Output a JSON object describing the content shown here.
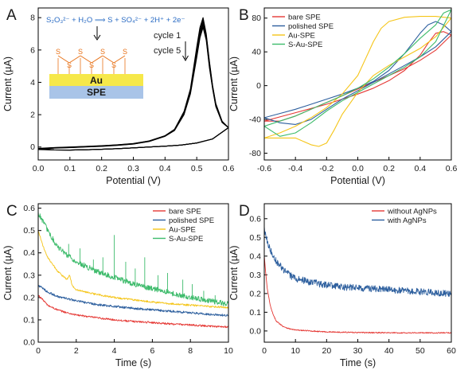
{
  "colors": {
    "red": "#e53935",
    "blue": "#2d5f9e",
    "yellow": "#f5c518",
    "green": "#3dbb6b",
    "navy_equation": "#2b6cc4",
    "gold_layer": "#f6e84a",
    "spe_layer": "#a9c4e8",
    "sulfur": "#e8731a",
    "black": "#000000"
  },
  "chart_data": [
    {
      "panel": "A",
      "type": "line",
      "xlabel": "Potential (V)",
      "ylabel": "Current (µA)",
      "xlim": [
        0.0,
        0.6
      ],
      "ylim": [
        -0.8,
        8.6
      ],
      "xticks": [
        0.0,
        0.1,
        0.2,
        0.3,
        0.4,
        0.5,
        0.6
      ],
      "xtick_labels": [
        "0.0",
        "0.1",
        "0.2",
        "0.3",
        "0.4",
        "0.5",
        "0.6"
      ],
      "yticks": [
        0,
        2,
        4,
        6,
        8
      ],
      "ytick_labels": [
        "0",
        "2",
        "4",
        "6",
        "8"
      ],
      "annotations": {
        "equation": "S₂O₃²⁻ + H₂O ⟹ S + SO₄²⁻ + 2H⁺ + 2e⁻",
        "cycle_first": "cycle 1",
        "cycle_last": "cycle 5",
        "gold_label": "Au",
        "spe_label": "SPE",
        "sulfur_label": "S"
      },
      "series": [
        {
          "forward_x": [
            0.0,
            0.05,
            0.1,
            0.15,
            0.2,
            0.25,
            0.3,
            0.35,
            0.4,
            0.43,
            0.46,
            0.48,
            0.5,
            0.51,
            0.52,
            0.53,
            0.54,
            0.55,
            0.56,
            0.58,
            0.6
          ],
          "forward_y": [
            -0.08,
            -0.03,
            0.0,
            0.04,
            0.08,
            0.14,
            0.22,
            0.38,
            0.7,
            1.1,
            2.2,
            3.6,
            6.2,
            7.4,
            8.0,
            7.0,
            5.3,
            3.8,
            2.7,
            1.6,
            1.2
          ],
          "reverse_x": [
            0.6,
            0.55,
            0.5,
            0.45,
            0.4,
            0.35,
            0.3,
            0.25,
            0.2,
            0.15,
            0.1,
            0.05,
            0.0
          ],
          "reverse_y": [
            1.2,
            0.5,
            0.25,
            0.12,
            0.05,
            0.0,
            -0.05,
            -0.1,
            -0.14,
            -0.17,
            -0.19,
            -0.18,
            -0.08
          ]
        },
        {
          "forward_x": [
            0.0,
            0.05,
            0.1,
            0.15,
            0.2,
            0.25,
            0.3,
            0.35,
            0.4,
            0.43,
            0.46,
            0.48,
            0.5,
            0.51,
            0.52,
            0.53,
            0.54,
            0.55,
            0.56,
            0.58,
            0.6
          ],
          "forward_y": [
            -0.1,
            -0.04,
            -0.01,
            0.03,
            0.07,
            0.13,
            0.21,
            0.37,
            0.69,
            1.08,
            2.15,
            3.5,
            6.0,
            7.2,
            7.85,
            6.9,
            5.2,
            3.75,
            2.65,
            1.58,
            1.2
          ],
          "reverse_x": [
            0.6,
            0.55,
            0.5,
            0.45,
            0.4,
            0.35,
            0.3,
            0.25,
            0.2,
            0.15,
            0.1,
            0.05,
            0.0
          ],
          "reverse_y": [
            1.2,
            0.5,
            0.25,
            0.12,
            0.05,
            0.0,
            -0.05,
            -0.1,
            -0.14,
            -0.17,
            -0.19,
            -0.18,
            -0.1
          ]
        },
        {
          "forward_x": [
            0.0,
            0.05,
            0.1,
            0.15,
            0.2,
            0.25,
            0.3,
            0.35,
            0.4,
            0.43,
            0.46,
            0.48,
            0.5,
            0.51,
            0.52,
            0.53,
            0.54,
            0.55,
            0.56,
            0.58,
            0.6
          ],
          "forward_y": [
            -0.12,
            -0.05,
            -0.02,
            0.02,
            0.06,
            0.12,
            0.2,
            0.36,
            0.68,
            1.06,
            2.1,
            3.42,
            5.85,
            7.05,
            7.7,
            6.8,
            5.1,
            3.7,
            2.6,
            1.56,
            1.2
          ],
          "reverse_x": [
            0.6,
            0.55,
            0.5,
            0.45,
            0.4,
            0.35,
            0.3,
            0.25,
            0.2,
            0.15,
            0.1,
            0.05,
            0.0
          ],
          "reverse_y": [
            1.2,
            0.5,
            0.25,
            0.12,
            0.05,
            0.0,
            -0.05,
            -0.1,
            -0.14,
            -0.17,
            -0.19,
            -0.18,
            -0.12
          ]
        },
        {
          "forward_x": [
            0.0,
            0.05,
            0.1,
            0.15,
            0.2,
            0.25,
            0.3,
            0.35,
            0.4,
            0.43,
            0.46,
            0.48,
            0.5,
            0.51,
            0.52,
            0.53,
            0.54,
            0.55,
            0.56,
            0.58,
            0.6
          ],
          "forward_y": [
            -0.14,
            -0.06,
            -0.03,
            0.01,
            0.05,
            0.11,
            0.19,
            0.35,
            0.67,
            1.04,
            2.05,
            3.35,
            5.7,
            6.9,
            7.55,
            6.7,
            5.0,
            3.65,
            2.55,
            1.54,
            1.2
          ],
          "reverse_x": [
            0.6,
            0.55,
            0.5,
            0.45,
            0.4,
            0.35,
            0.3,
            0.25,
            0.2,
            0.15,
            0.1,
            0.05,
            0.0
          ],
          "reverse_y": [
            1.2,
            0.5,
            0.25,
            0.12,
            0.05,
            0.0,
            -0.05,
            -0.1,
            -0.14,
            -0.17,
            -0.19,
            -0.18,
            -0.14
          ]
        },
        {
          "forward_x": [
            0.0,
            0.05,
            0.1,
            0.15,
            0.2,
            0.25,
            0.3,
            0.35,
            0.4,
            0.43,
            0.46,
            0.48,
            0.5,
            0.51,
            0.52,
            0.53,
            0.54,
            0.55,
            0.56,
            0.58,
            0.6
          ],
          "forward_y": [
            -0.16,
            -0.07,
            -0.04,
            0.0,
            0.04,
            0.1,
            0.18,
            0.34,
            0.66,
            1.02,
            2.0,
            3.28,
            5.55,
            6.75,
            7.4,
            6.6,
            4.9,
            3.6,
            2.5,
            1.52,
            1.2
          ],
          "reverse_x": [
            0.6,
            0.55,
            0.5,
            0.45,
            0.4,
            0.35,
            0.3,
            0.25,
            0.2,
            0.15,
            0.1,
            0.05,
            0.0
          ],
          "reverse_y": [
            1.2,
            0.5,
            0.25,
            0.12,
            0.05,
            0.0,
            -0.05,
            -0.1,
            -0.14,
            -0.17,
            -0.19,
            -0.18,
            -0.16
          ]
        }
      ]
    },
    {
      "panel": "B",
      "type": "line",
      "xlabel": "Potential (V)",
      "ylabel": "Current (µA)",
      "xlim": [
        -0.6,
        0.6
      ],
      "ylim": [
        -88,
        92
      ],
      "xticks": [
        -0.6,
        -0.4,
        -0.2,
        0.0,
        0.2,
        0.4,
        0.6
      ],
      "xtick_labels": [
        "-0.6",
        "-0.4",
        "-0.2",
        "0.0",
        "0.2",
        "0.4",
        "0.6"
      ],
      "yticks": [
        -80,
        -40,
        0,
        40,
        80
      ],
      "ytick_labels": [
        "-80",
        "-40",
        "0",
        "40",
        "80"
      ],
      "legend": [
        "bare SPE",
        "polished SPE",
        "Au-SPE",
        "S-Au-SPE"
      ],
      "legend_position": "top-left",
      "series": [
        {
          "name": "bare SPE",
          "color": "#e53935",
          "forward_x": [
            -0.6,
            -0.5,
            -0.4,
            -0.3,
            -0.2,
            -0.1,
            0.0,
            0.1,
            0.2,
            0.3,
            0.4,
            0.45,
            0.5,
            0.55,
            0.6
          ],
          "forward_y": [
            -42,
            -37,
            -32,
            -27,
            -22,
            -16,
            -10,
            -3,
            6,
            18,
            36,
            50,
            62,
            64,
            60
          ],
          "reverse_x": [
            0.6,
            0.5,
            0.4,
            0.3,
            0.2,
            0.1,
            0.0,
            -0.1,
            -0.2,
            -0.3,
            -0.4,
            -0.5,
            -0.6
          ],
          "reverse_y": [
            60,
            42,
            30,
            20,
            12,
            4,
            -4,
            -12,
            -20,
            -28,
            -36,
            -42,
            -42
          ]
        },
        {
          "name": "polished SPE",
          "color": "#2d5f9e",
          "forward_x": [
            -0.6,
            -0.5,
            -0.4,
            -0.3,
            -0.2,
            -0.1,
            0.0,
            0.1,
            0.2,
            0.3,
            0.4,
            0.45,
            0.5,
            0.55,
            0.6
          ],
          "forward_y": [
            -38,
            -33,
            -28,
            -22,
            -16,
            -10,
            -3,
            5,
            18,
            38,
            62,
            72,
            76,
            72,
            64
          ],
          "reverse_x": [
            0.6,
            0.5,
            0.4,
            0.3,
            0.2,
            0.1,
            0.0,
            -0.1,
            -0.2,
            -0.3,
            -0.4,
            -0.5,
            -0.6
          ],
          "reverse_y": [
            64,
            46,
            34,
            24,
            14,
            4,
            -6,
            -16,
            -28,
            -40,
            -46,
            -44,
            -38
          ]
        },
        {
          "name": "Au-SPE",
          "color": "#f5c518",
          "forward_x": [
            -0.6,
            -0.5,
            -0.4,
            -0.3,
            -0.2,
            -0.1,
            0.0,
            0.05,
            0.1,
            0.15,
            0.2,
            0.3,
            0.4,
            0.5,
            0.6
          ],
          "forward_y": [
            -62,
            -56,
            -48,
            -38,
            -26,
            -10,
            12,
            32,
            52,
            68,
            76,
            81,
            82,
            82,
            80
          ],
          "reverse_x": [
            0.6,
            0.5,
            0.4,
            0.3,
            0.2,
            0.1,
            0.0,
            -0.1,
            -0.15,
            -0.2,
            -0.25,
            -0.3,
            -0.4,
            -0.5,
            -0.6
          ],
          "reverse_y": [
            80,
            58,
            44,
            34,
            24,
            12,
            -8,
            -34,
            -52,
            -68,
            -72,
            -70,
            -62,
            -62,
            -62
          ]
        },
        {
          "name": "S-Au-SPE",
          "color": "#3dbb6b",
          "forward_x": [
            -0.6,
            -0.5,
            -0.4,
            -0.3,
            -0.2,
            -0.1,
            0.0,
            0.1,
            0.2,
            0.3,
            0.4,
            0.5,
            0.55,
            0.6
          ],
          "forward_y": [
            -48,
            -42,
            -36,
            -28,
            -20,
            -12,
            -3,
            8,
            22,
            38,
            56,
            72,
            86,
            90
          ],
          "reverse_x": [
            0.6,
            0.5,
            0.4,
            0.3,
            0.2,
            0.1,
            0.0,
            -0.1,
            -0.2,
            -0.3,
            -0.4,
            -0.5,
            -0.6
          ],
          "reverse_y": [
            90,
            52,
            34,
            22,
            12,
            2,
            -8,
            -18,
            -30,
            -44,
            -56,
            -60,
            -48
          ]
        }
      ]
    },
    {
      "panel": "C",
      "type": "line",
      "xlabel": "Time (s)",
      "ylabel": "Current (µA)",
      "xlim": [
        0,
        10
      ],
      "ylim": [
        0.0,
        0.62
      ],
      "xticks": [
        0,
        2,
        4,
        6,
        8,
        10
      ],
      "xtick_labels": [
        "0",
        "2",
        "4",
        "6",
        "8",
        "10"
      ],
      "yticks": [
        0.0,
        0.1,
        0.2,
        0.3,
        0.4,
        0.5,
        0.6
      ],
      "ytick_labels": [
        "0.0",
        "0.1",
        "0.2",
        "0.3",
        "0.4",
        "0.5",
        "0.6"
      ],
      "legend": [
        "bare SPE",
        "polished SPE",
        "Au-SPE",
        "S-Au-SPE"
      ],
      "legend_position": "top-right",
      "series": [
        {
          "name": "bare SPE",
          "color": "#e53935",
          "x": [
            0,
            0.25,
            0.5,
            1,
            1.5,
            2,
            3,
            4,
            5,
            6,
            7,
            8,
            9,
            10
          ],
          "y": [
            0.21,
            0.19,
            0.165,
            0.145,
            0.132,
            0.122,
            0.11,
            0.1,
            0.093,
            0.088,
            0.082,
            0.077,
            0.072,
            0.068
          ],
          "noise": 0.004
        },
        {
          "name": "polished SPE",
          "color": "#2d5f9e",
          "x": [
            0,
            0.25,
            0.5,
            1,
            1.5,
            2,
            3,
            4,
            5,
            6,
            7,
            8,
            9,
            10
          ],
          "y": [
            0.255,
            0.24,
            0.225,
            0.205,
            0.195,
            0.185,
            0.17,
            0.16,
            0.152,
            0.145,
            0.138,
            0.132,
            0.125,
            0.12
          ],
          "noise": 0.005
        },
        {
          "name": "Au-SPE",
          "color": "#f5c518",
          "x": [
            0,
            0.25,
            0.5,
            1,
            1.5,
            1.65,
            1.8,
            2,
            3,
            4,
            5,
            6,
            7,
            8,
            9,
            10
          ],
          "y": [
            0.5,
            0.43,
            0.38,
            0.32,
            0.28,
            0.3,
            0.25,
            0.235,
            0.215,
            0.2,
            0.19,
            0.18,
            0.172,
            0.166,
            0.16,
            0.155
          ],
          "noise": 0.004
        },
        {
          "name": "S-Au-SPE",
          "color": "#3dbb6b",
          "x": [
            0,
            0.25,
            0.5,
            1,
            1.5,
            2,
            3,
            4,
            5,
            6,
            7,
            8,
            9,
            10
          ],
          "y": [
            0.58,
            0.54,
            0.5,
            0.43,
            0.39,
            0.36,
            0.32,
            0.29,
            0.26,
            0.24,
            0.22,
            0.2,
            0.185,
            0.17
          ],
          "noise": 0.012,
          "spikes_x": [
            1.6,
            2.2,
            2.9,
            3.4,
            4.0,
            4.6,
            5.1,
            5.6,
            6.3,
            6.8,
            7.6,
            8.1,
            8.7,
            9.3
          ],
          "spikes_y": [
            0.44,
            0.42,
            0.37,
            0.38,
            0.48,
            0.36,
            0.33,
            0.38,
            0.3,
            0.31,
            0.28,
            0.26,
            0.23,
            0.21
          ]
        }
      ]
    },
    {
      "panel": "D",
      "type": "line",
      "xlabel": "Time (s)",
      "ylabel": "Current (µA)",
      "xlim": [
        0,
        60
      ],
      "ylim": [
        -0.06,
        0.68
      ],
      "xticks": [
        0,
        10,
        20,
        30,
        40,
        50,
        60
      ],
      "xtick_labels": [
        "0",
        "10",
        "20",
        "30",
        "40",
        "50",
        "60"
      ],
      "yticks": [
        0.0,
        0.1,
        0.2,
        0.3,
        0.4,
        0.5,
        0.6
      ],
      "ytick_labels": [
        "0.0",
        "0.1",
        "0.2",
        "0.3",
        "0.4",
        "0.5",
        "0.6"
      ],
      "legend": [
        "without AgNPs",
        "with AgNPs"
      ],
      "legend_position": "top-right",
      "series": [
        {
          "name": "without AgNPs",
          "color": "#e53935",
          "x": [
            0,
            0.5,
            1,
            2,
            3,
            4,
            6,
            8,
            10,
            15,
            20,
            30,
            40,
            50,
            60
          ],
          "y": [
            0.4,
            0.3,
            0.22,
            0.13,
            0.08,
            0.05,
            0.025,
            0.012,
            0.005,
            0.0,
            -0.005,
            -0.008,
            -0.01,
            -0.01,
            -0.01
          ],
          "noise": 0.003
        },
        {
          "name": "with AgNPs",
          "color": "#2d5f9e",
          "x": [
            0,
            1,
            2,
            4,
            6,
            8,
            10,
            15,
            20,
            25,
            30,
            40,
            50,
            60
          ],
          "y": [
            0.55,
            0.48,
            0.43,
            0.37,
            0.33,
            0.3,
            0.28,
            0.26,
            0.245,
            0.235,
            0.23,
            0.22,
            0.21,
            0.2
          ],
          "noise": 0.018
        }
      ]
    }
  ]
}
